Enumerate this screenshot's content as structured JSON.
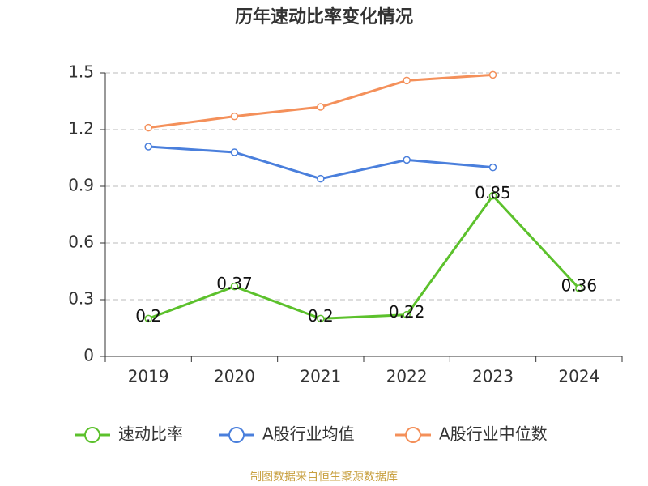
{
  "chart_data": {
    "type": "line",
    "title": "历年速动比率变化情况",
    "categories": [
      "2019",
      "2020",
      "2021",
      "2022",
      "2023",
      "2024"
    ],
    "series": [
      {
        "name": "速动比率",
        "color": "#5cc12c",
        "values": [
          0.2,
          0.37,
          0.2,
          0.22,
          0.85,
          0.36
        ],
        "labels": true
      },
      {
        "name": "A股行业均值",
        "color": "#4a7fdc",
        "values": [
          1.11,
          1.08,
          0.94,
          1.04,
          1.0,
          null
        ]
      },
      {
        "name": "A股行业中位数",
        "color": "#f4905a",
        "values": [
          1.21,
          1.27,
          1.32,
          1.46,
          1.49,
          null
        ]
      }
    ],
    "ylim": [
      0,
      1.5
    ],
    "yticks": [
      0,
      0.3,
      0.6,
      0.9,
      1.2,
      1.5
    ],
    "grid": true,
    "source": "制图数据来自恒生聚源数据库"
  }
}
